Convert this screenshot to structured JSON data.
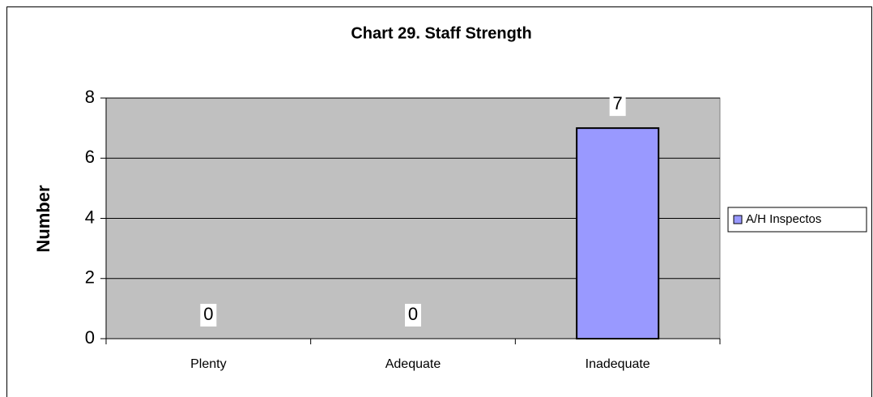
{
  "chart_data": {
    "type": "bar",
    "title": "Chart 29. Staff Strength",
    "y_label": "Number",
    "categories": [
      "Plenty",
      "Adequate",
      "Inadequate"
    ],
    "series": [
      {
        "name": "A/H Inspectos",
        "color": "#9999ff",
        "values": [
          0,
          0,
          7
        ]
      }
    ],
    "ylim": [
      0,
      8
    ],
    "yticks": [
      0,
      2,
      4,
      6,
      8
    ],
    "grid": true,
    "legend": "right"
  }
}
